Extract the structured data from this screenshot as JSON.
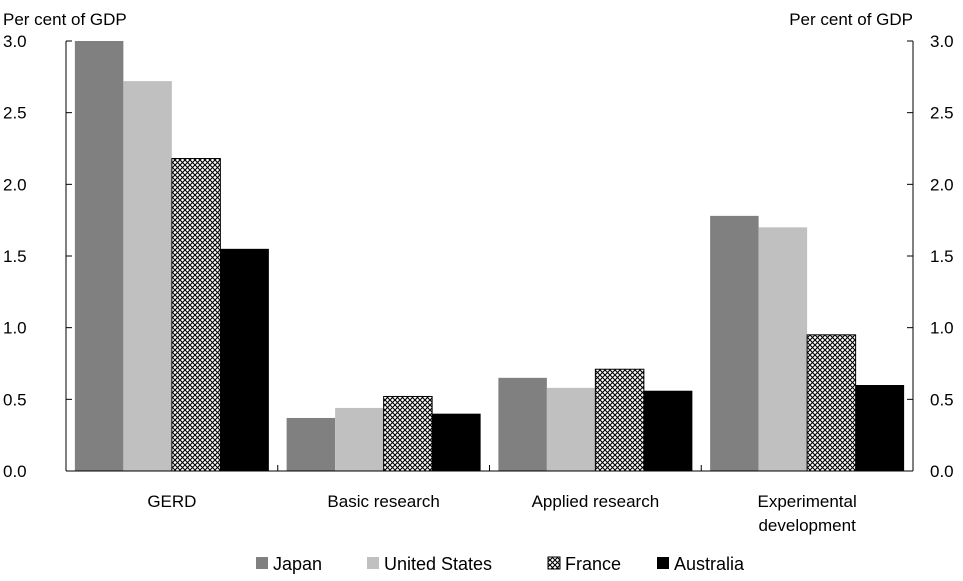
{
  "chart_data": {
    "type": "bar",
    "left_axis_label": "Per cent of GDP",
    "right_axis_label": "Per cent of GDP",
    "categories": [
      [
        "GERD"
      ],
      [
        "Basic research"
      ],
      [
        "Applied research"
      ],
      [
        "Experimental",
        "development"
      ]
    ],
    "series": [
      {
        "name": "Japan",
        "values": [
          3.0,
          0.37,
          0.65,
          1.78
        ],
        "color": "#808080",
        "pattern": "solid"
      },
      {
        "name": "United States",
        "values": [
          2.72,
          0.44,
          0.58,
          1.7
        ],
        "color": "#c0c0c0",
        "pattern": "solid"
      },
      {
        "name": "France",
        "values": [
          2.18,
          0.52,
          0.71,
          0.95
        ],
        "color": "#000000",
        "pattern": "crosshatch"
      },
      {
        "name": "Australia",
        "values": [
          1.55,
          0.4,
          0.56,
          0.6
        ],
        "color": "#000000",
        "pattern": "solid"
      }
    ],
    "ylim": [
      0,
      3.0
    ],
    "yticks": [
      "0.0",
      "0.5",
      "1.0",
      "1.5",
      "2.0",
      "2.5",
      "3.0"
    ],
    "grid": false,
    "legend_position": "bottom"
  }
}
